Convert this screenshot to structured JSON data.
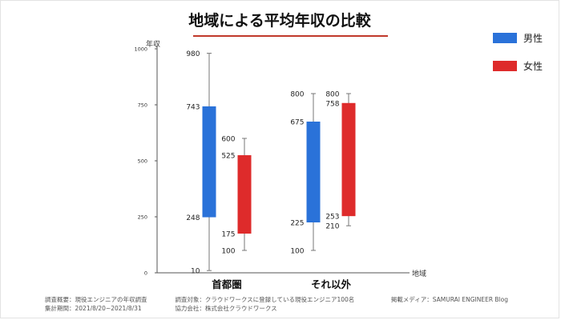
{
  "title": "地域による平均年収の比較",
  "chart_data": {
    "type": "box",
    "title": "地域による平均年収の比較",
    "xlabel": "地域",
    "ylabel": "年収",
    "ylim": [
      0,
      1000
    ],
    "yticks": [
      0,
      250,
      500,
      750,
      1000
    ],
    "categories": [
      "首都圏",
      "それ以外"
    ],
    "legend_position": "top-right",
    "series": [
      {
        "name": "男性",
        "color": "#2a72d9",
        "data": [
          {
            "min": 10,
            "q1": 248,
            "q3": 743,
            "max": 980
          },
          {
            "min": 100,
            "q1": 225,
            "q3": 675,
            "max": 800
          }
        ]
      },
      {
        "name": "女性",
        "color": "#de2b2b",
        "data": [
          {
            "min": 100,
            "q1": 175,
            "q3": 525,
            "max": 600
          },
          {
            "min": 210,
            "q1": 253,
            "q3": 758,
            "max": 800
          }
        ]
      }
    ]
  },
  "footer": {
    "survey_overview": "調査概要：現役エンジニアの年収調査",
    "survey_target": "調査対象：クラウドワークスに登録している現役エンジニア100名",
    "media": "掲載メディア：SAMURAI ENGINEER Blog",
    "period": "集計期間：2021/8/20~2021/8/31",
    "cooperation": "協力会社：株式会社クラウドワークス"
  }
}
